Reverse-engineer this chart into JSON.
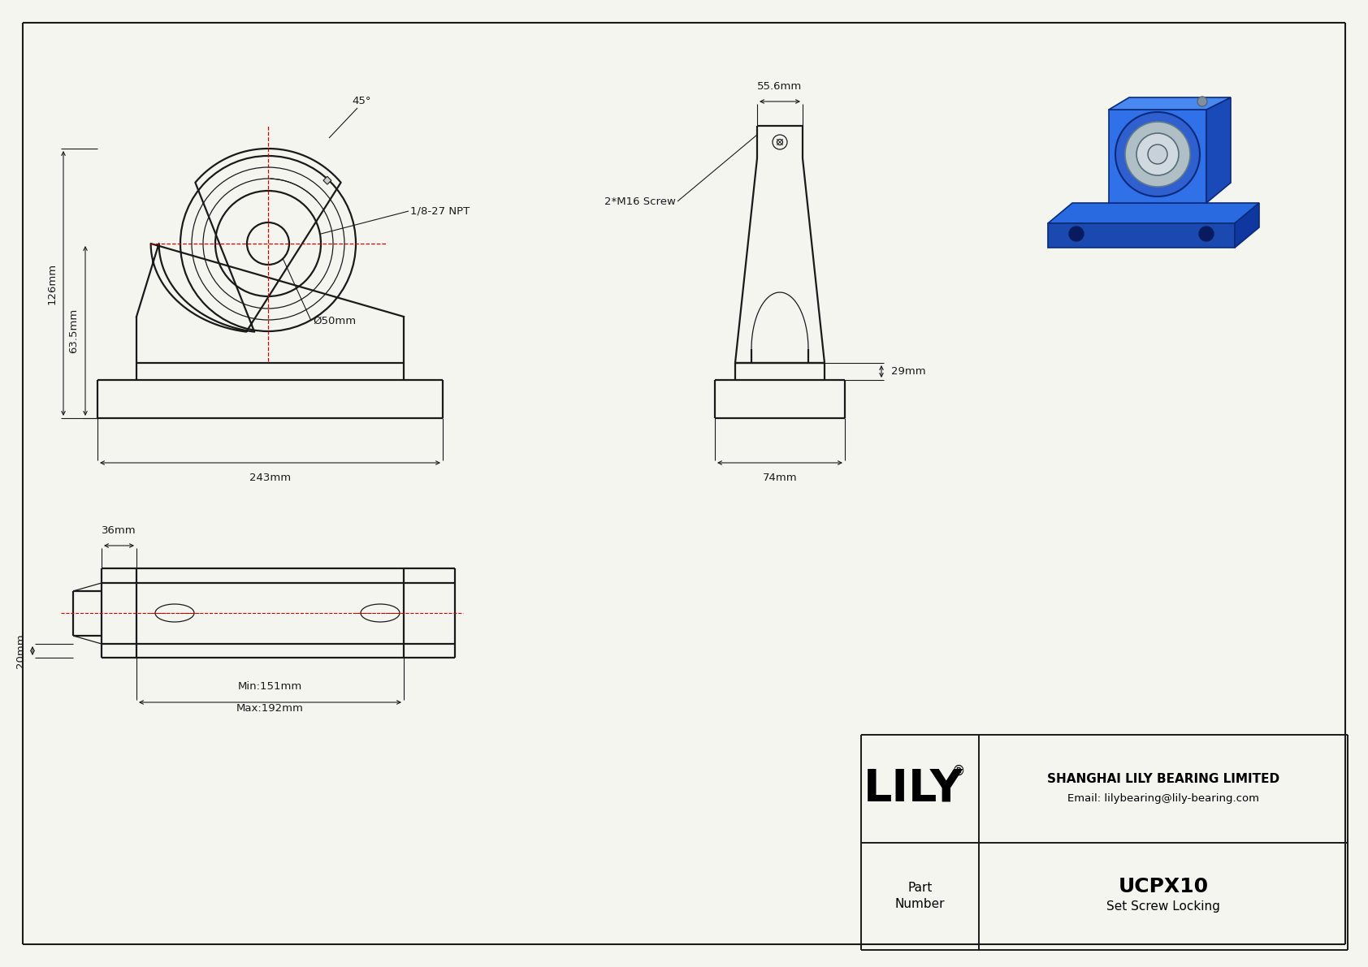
{
  "bg_color": "#f5f5f0",
  "line_color": "#1a1a1a",
  "red_color": "#cc0000",
  "company": "SHANGHAI LILY BEARING LIMITED",
  "email": "Email: lilybearing@lily-bearing.com",
  "part_number": "UCPX10",
  "locking": "Set Screw Locking",
  "dim_126": "126mm",
  "dim_63_5": "63.5mm",
  "dim_243": "243mm",
  "dim_50": "Ø50mm",
  "dim_45": "45°",
  "dim_npt": "1/8-27 NPT",
  "dim_screw": "2*M16 Screw",
  "dim_55_6": "55.6mm",
  "dim_29": "29mm",
  "dim_74": "74mm",
  "dim_36": "36mm",
  "dim_20": "20mm",
  "dim_min": "Min:151mm",
  "dim_max": "Max:192mm"
}
